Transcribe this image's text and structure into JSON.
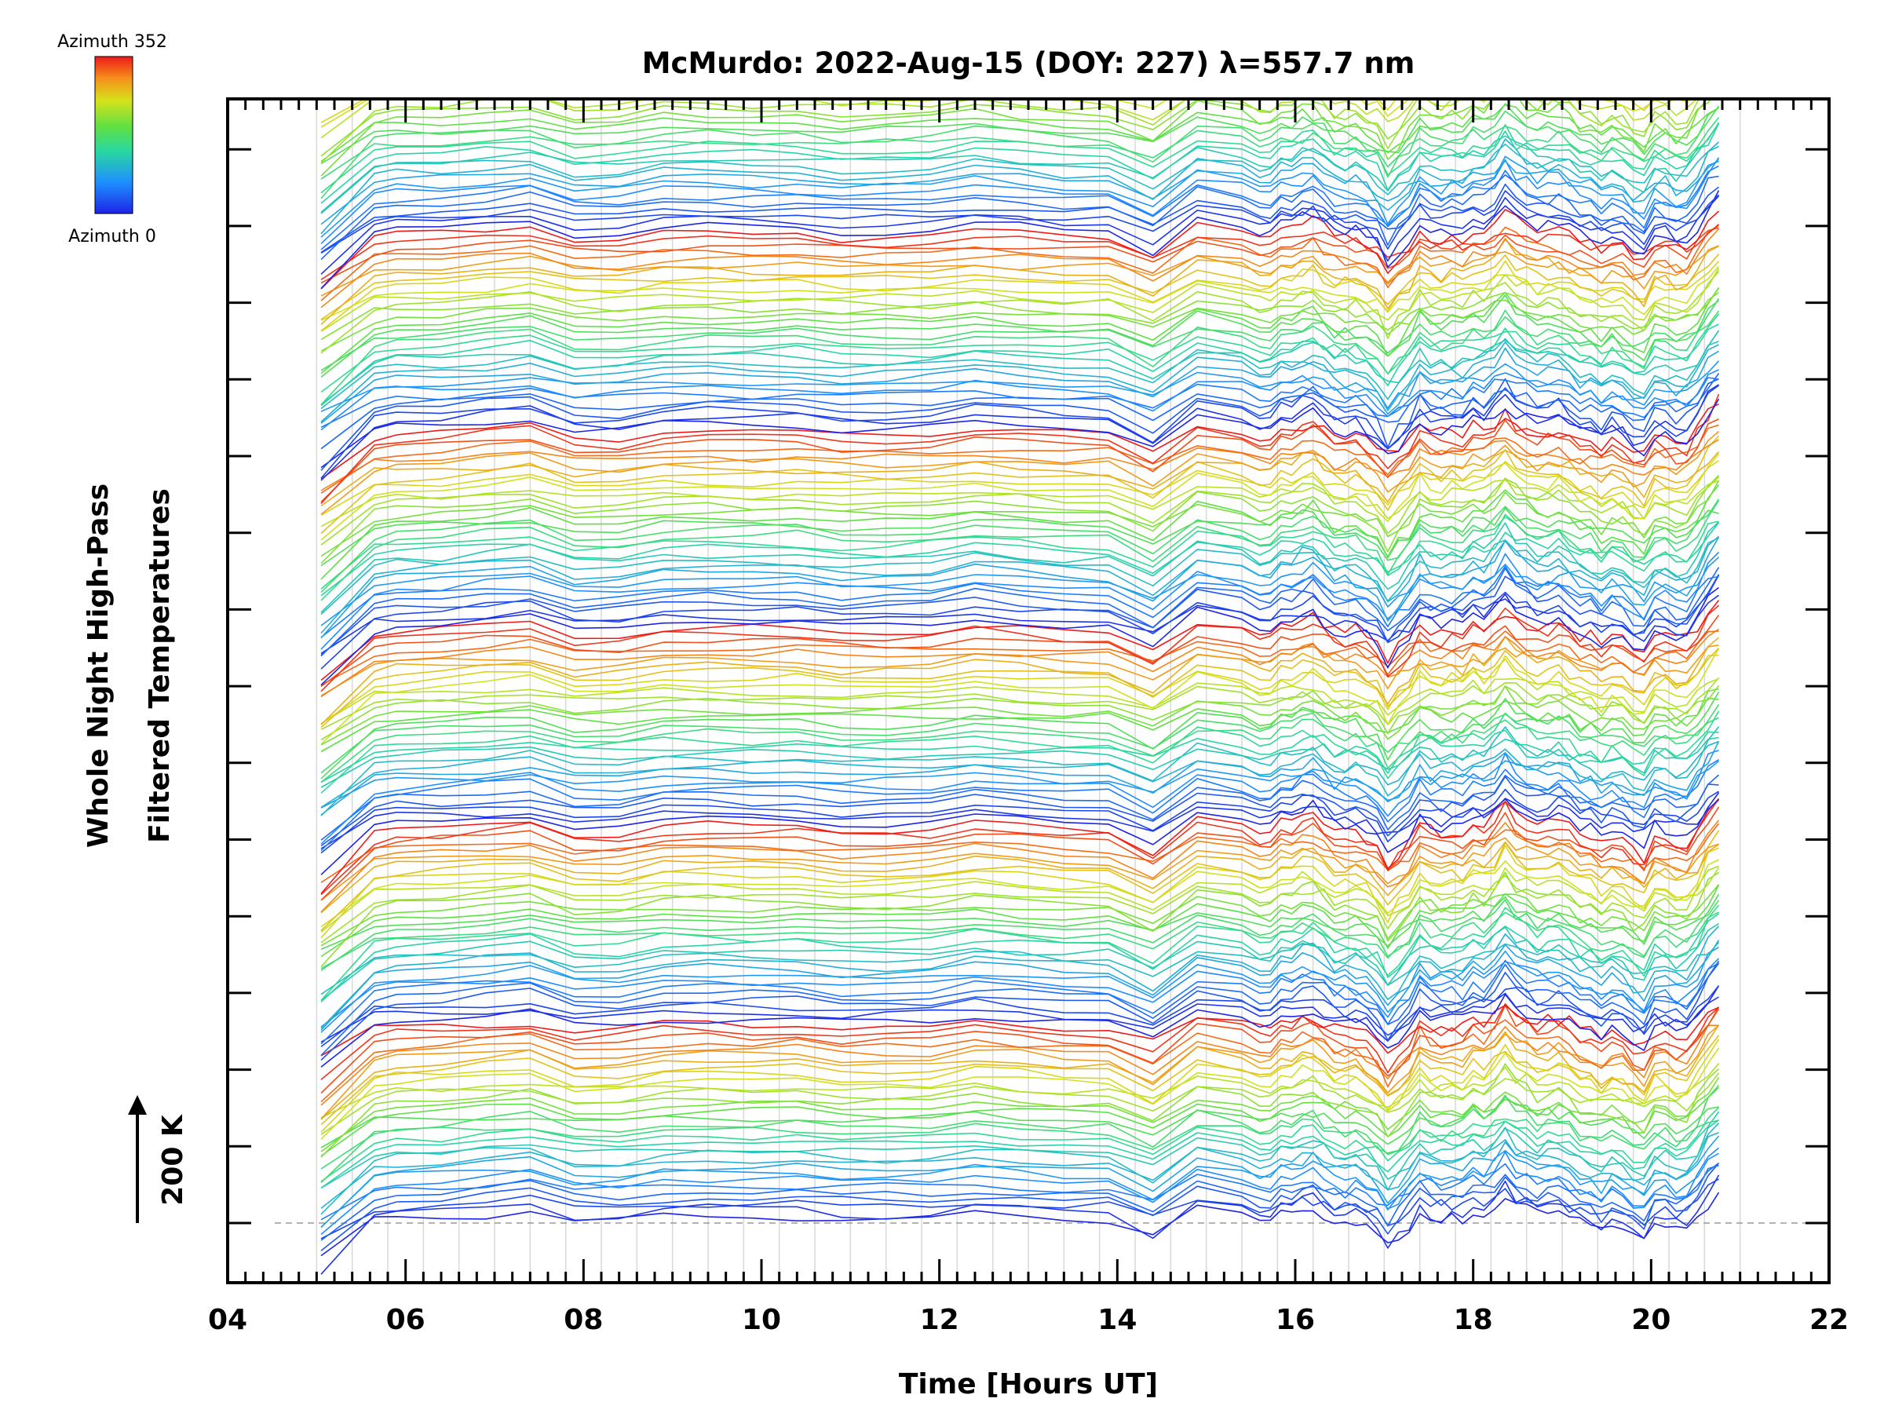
{
  "chart_data": {
    "type": "line",
    "title": "McMurdo: 2022-Aug-15 (DOY: 227) λ=557.7 nm",
    "xlabel": "Time [Hours UT]",
    "ylabel_line1": "Whole Night High-Pass",
    "ylabel_line2": "Filtered Temperatures",
    "scale_bar_label": "200 K",
    "xlim": [
      4,
      22
    ],
    "x_tick_labels": [
      "04",
      "06",
      "08",
      "10",
      "12",
      "14",
      "16",
      "18",
      "20",
      "22"
    ],
    "x_tick_values": [
      4,
      6,
      8,
      10,
      12,
      14,
      16,
      18,
      20,
      22
    ],
    "data_time_range": [
      5.05,
      20.85
    ],
    "colorbar": {
      "top_label": "Azimuth 352",
      "bottom_label": "Azimuth 0",
      "azimuth_range": [
        0,
        352
      ]
    },
    "series_description": "Stacked high-pass filtered temperature traces, one per azimuth sample, offset vertically; colour encodes azimuth (blue = 0, red = 352)",
    "number_of_stacked_groups": 5,
    "traces_per_group": 32,
    "reference_line_style": "dashed grey baseline at lowest trace offset",
    "colors": {
      "azimuth_low": "#1f2fe0",
      "azimuth_mid": "#3ee06a",
      "azimuth_high": "#ee1c1c",
      "grid": "#d8d8d8",
      "axis": "#000000"
    }
  }
}
